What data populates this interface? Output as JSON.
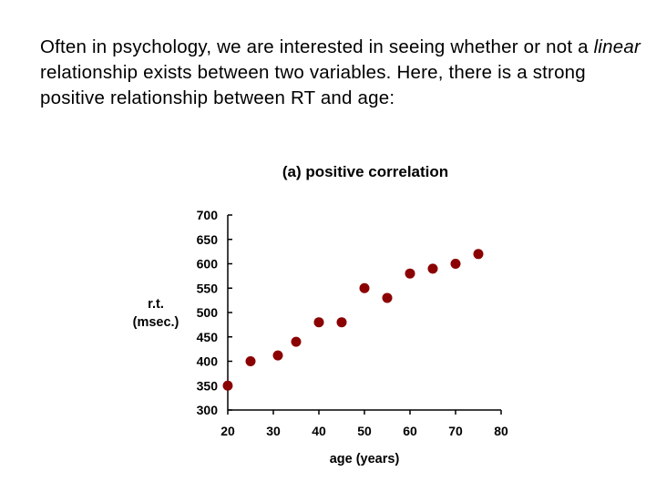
{
  "intro": {
    "before": "Often in psychology, we are interested in seeing whether or not a ",
    "emphasis": "linear",
    "after": " relationship exists between two variables. Here, there is a strong positive relationship between RT and age:"
  },
  "colors": {
    "point": "#8b0000",
    "axis": "#000000"
  },
  "chart_data": {
    "type": "scatter",
    "title": "(a) positive correlation",
    "xlabel": "age (years)",
    "ylabel_line1": "r.t.",
    "ylabel_line2": "(msec.)",
    "xlim": [
      20,
      80
    ],
    "ylim": [
      300,
      700
    ],
    "xticks": [
      20,
      30,
      40,
      50,
      60,
      70,
      80
    ],
    "yticks": [
      300,
      350,
      400,
      450,
      500,
      550,
      600,
      650,
      700
    ],
    "xtick_labels": [
      "20",
      "30",
      "40",
      "50",
      "60",
      "70",
      "80"
    ],
    "ytick_labels": [
      "300",
      "350",
      "400",
      "450",
      "500",
      "550",
      "600",
      "650",
      "700"
    ],
    "grid": false,
    "legend": "none",
    "points": [
      {
        "x": 20,
        "y": 350
      },
      {
        "x": 25,
        "y": 400
      },
      {
        "x": 31,
        "y": 412
      },
      {
        "x": 35,
        "y": 440
      },
      {
        "x": 40,
        "y": 480
      },
      {
        "x": 45,
        "y": 480
      },
      {
        "x": 50,
        "y": 550
      },
      {
        "x": 55,
        "y": 530
      },
      {
        "x": 60,
        "y": 580
      },
      {
        "x": 65,
        "y": 590
      },
      {
        "x": 70,
        "y": 600
      },
      {
        "x": 75,
        "y": 620
      }
    ]
  }
}
